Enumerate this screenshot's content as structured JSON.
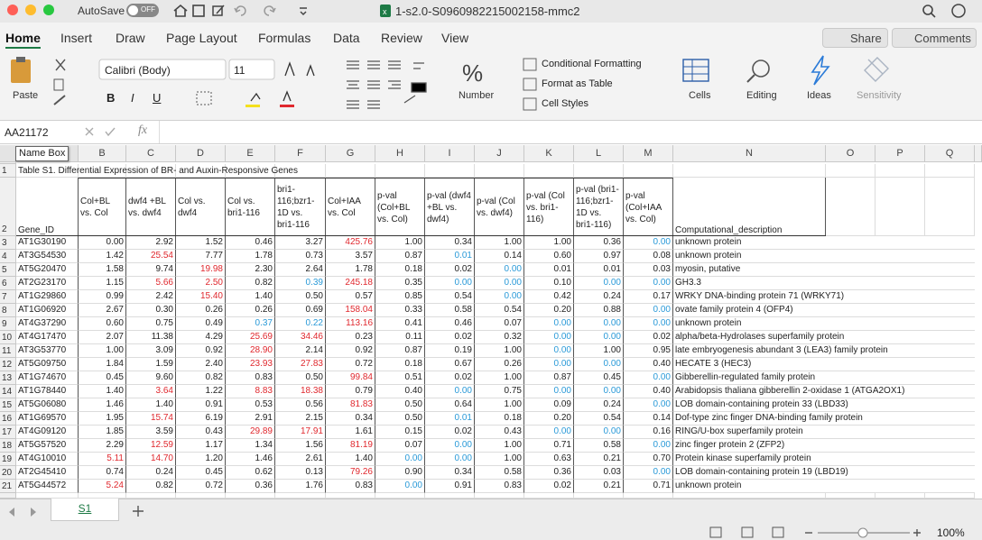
{
  "window": {
    "autosave": "AutoSave",
    "autosave_state": "OFF",
    "file_name": "1-s2.0-S0960982215002158-mmc2"
  },
  "ribbon": {
    "tabs": [
      "Home",
      "Insert",
      "Draw",
      "Page Layout",
      "Formulas",
      "Data",
      "Review",
      "View"
    ],
    "active_tab": 0,
    "share": "Share",
    "comments": "Comments",
    "paste": "Paste",
    "font": "Calibri (Body)",
    "font_size": "11",
    "format_buttons": [
      "B",
      "I",
      "U"
    ],
    "number": "Number",
    "conditional_formatting": "Conditional Formatting",
    "format_as_table": "Format as Table",
    "cell_styles": "Cell Styles",
    "cells": "Cells",
    "editing": "Editing",
    "ideas": "Ideas",
    "sensitivity": "Sensitivity"
  },
  "formula_bar": {
    "cell_ref": "AA21172",
    "fx": "fx"
  },
  "sheet": {
    "name_box_tooltip": "Name Box",
    "columns": [
      "B",
      "C",
      "D",
      "E",
      "F",
      "G",
      "H",
      "I",
      "J",
      "K",
      "L",
      "M",
      "N",
      "O",
      "P",
      "Q"
    ],
    "row_numbers": [
      "1",
      "2",
      "3",
      "4",
      "5",
      "6",
      "7",
      "8",
      "9",
      "10",
      "11",
      "12",
      "13",
      "14",
      "15",
      "16",
      "17",
      "18",
      "19",
      "20",
      "21"
    ],
    "title": "Table S1. Differential Expression of BR- and Auxin-Responsive Genes",
    "headers": [
      "Gene_ID",
      "Col+BL vs. Col",
      "dwf4 +BL vs. dwf4",
      "Col vs. dwf4",
      "Col vs. bri1-116",
      "bri1-116;bzr1-1D vs. bri1-116",
      "Col+IAA vs. Col",
      "p-val (Col+BL vs. Col)",
      "p-val (dwf4 +BL vs. dwf4)",
      "p-val (Col vs. dwf4)",
      "p-val (Col vs. bri1-116)",
      "p-val (bri1-116;bzr1-1D vs. bri1-116)",
      "p-val (Col+IAA vs. Col)",
      "Computational_description"
    ],
    "rows": [
      [
        "AT1G30190",
        "0.00",
        "2.92",
        "1.52",
        "0.46",
        "3.27",
        {
          "text": "425.76",
          "color": "#e0282e"
        },
        "1.00",
        "0.34",
        "1.00",
        "1.00",
        "0.36",
        {
          "text": "0.00",
          "color": "#2a9ad8"
        },
        "unknown protein"
      ],
      [
        "AT3G54530",
        "1.42",
        {
          "text": "25.54",
          "color": "#e0282e"
        },
        "7.77",
        "1.78",
        "0.73",
        "3.57",
        "0.87",
        {
          "text": "0.01",
          "color": "#2a9ad8"
        },
        "0.14",
        "0.60",
        "0.97",
        "0.08",
        "unknown protein"
      ],
      [
        "AT5G20470",
        "1.58",
        "9.74",
        {
          "text": "19.98",
          "color": "#e0282e"
        },
        "2.30",
        "2.64",
        "1.78",
        "0.18",
        "0.02",
        {
          "text": "0.00",
          "color": "#2a9ad8"
        },
        "0.01",
        "0.01",
        "0.03",
        "myosin, putative"
      ],
      [
        "AT2G23170",
        "1.15",
        {
          "text": "5.66",
          "color": "#e0282e"
        },
        {
          "text": "2.50",
          "color": "#e0282e"
        },
        "0.82",
        {
          "text": "0.39",
          "color": "#2a9ad8"
        },
        {
          "text": "245.18",
          "color": "#e0282e"
        },
        "0.35",
        {
          "text": "0.00",
          "color": "#2a9ad8"
        },
        {
          "text": "0.00",
          "color": "#2a9ad8"
        },
        "0.10",
        {
          "text": "0.00",
          "color": "#2a9ad8"
        },
        {
          "text": "0.00",
          "color": "#2a9ad8"
        },
        "GH3.3"
      ],
      [
        "AT1G29860",
        "0.99",
        "2.42",
        {
          "text": "15.40",
          "color": "#e0282e"
        },
        "1.40",
        "0.50",
        "0.57",
        "0.85",
        "0.54",
        {
          "text": "0.00",
          "color": "#2a9ad8"
        },
        "0.42",
        "0.24",
        "0.17",
        "WRKY DNA-binding protein 71 (WRKY71)"
      ],
      [
        "AT1G06920",
        "2.67",
        "0.30",
        "0.26",
        "0.26",
        "0.69",
        {
          "text": "158.04",
          "color": "#e0282e"
        },
        "0.33",
        "0.58",
        "0.54",
        "0.20",
        "0.88",
        {
          "text": "0.00",
          "color": "#2a9ad8"
        },
        "ovate family protein 4 (OFP4)"
      ],
      [
        "AT4G37290",
        "0.60",
        "0.75",
        "0.49",
        {
          "text": "0.37",
          "color": "#2a9ad8"
        },
        {
          "text": "0.22",
          "color": "#2a9ad8"
        },
        {
          "text": "113.16",
          "color": "#e0282e"
        },
        "0.41",
        "0.46",
        "0.07",
        {
          "text": "0.00",
          "color": "#2a9ad8"
        },
        {
          "text": "0.00",
          "color": "#2a9ad8"
        },
        {
          "text": "0.00",
          "color": "#2a9ad8"
        },
        "unknown protein"
      ],
      [
        "AT4G17470",
        "2.07",
        "11.38",
        "4.29",
        {
          "text": "25.69",
          "color": "#e0282e"
        },
        {
          "text": "34.46",
          "color": "#e0282e"
        },
        "0.23",
        "0.11",
        "0.02",
        "0.32",
        {
          "text": "0.00",
          "color": "#2a9ad8"
        },
        {
          "text": "0.00",
          "color": "#2a9ad8"
        },
        "0.02",
        "alpha/beta-Hydrolases superfamily protein"
      ],
      [
        "AT3G53770",
        "1.00",
        "3.09",
        "0.92",
        {
          "text": "28.90",
          "color": "#e0282e"
        },
        "2.14",
        "0.92",
        "0.87",
        "0.19",
        "1.00",
        {
          "text": "0.00",
          "color": "#2a9ad8"
        },
        "1.00",
        "0.95",
        "late embryogenesis abundant 3 (LEA3) family protein"
      ],
      [
        "AT5G09750",
        "1.84",
        "1.59",
        "2.40",
        {
          "text": "23.93",
          "color": "#e0282e"
        },
        {
          "text": "27.83",
          "color": "#e0282e"
        },
        "0.72",
        "0.18",
        "0.67",
        "0.26",
        {
          "text": "0.00",
          "color": "#2a9ad8"
        },
        {
          "text": "0.00",
          "color": "#2a9ad8"
        },
        "0.40",
        "HECATE 3 (HEC3)"
      ],
      [
        "AT1G74670",
        "0.45",
        "9.60",
        "0.82",
        "0.83",
        "0.50",
        {
          "text": "99.84",
          "color": "#e0282e"
        },
        "0.51",
        "0.02",
        "1.00",
        "0.87",
        "0.45",
        {
          "text": "0.00",
          "color": "#2a9ad8"
        },
        "Gibberellin-regulated family protein"
      ],
      [
        "AT1G78440",
        "1.40",
        {
          "text": "3.64",
          "color": "#e0282e"
        },
        "1.22",
        {
          "text": "8.83",
          "color": "#e0282e"
        },
        {
          "text": "18.38",
          "color": "#e0282e"
        },
        "0.79",
        "0.40",
        {
          "text": "0.00",
          "color": "#2a9ad8"
        },
        "0.75",
        {
          "text": "0.00",
          "color": "#2a9ad8"
        },
        {
          "text": "0.00",
          "color": "#2a9ad8"
        },
        "0.40",
        "Arabidopsis thaliana gibberellin 2-oxidase 1 (ATGA2OX1)"
      ],
      [
        "AT5G06080",
        "1.46",
        "1.40",
        "0.91",
        "0.53",
        "0.56",
        {
          "text": "81.83",
          "color": "#e0282e"
        },
        "0.50",
        "0.64",
        "1.00",
        "0.09",
        "0.24",
        {
          "text": "0.00",
          "color": "#2a9ad8"
        },
        "LOB domain-containing protein 33 (LBD33)"
      ],
      [
        "AT1G69570",
        "1.95",
        {
          "text": "15.74",
          "color": "#e0282e"
        },
        "6.19",
        "2.91",
        "2.15",
        "0.34",
        "0.50",
        {
          "text": "0.01",
          "color": "#2a9ad8"
        },
        "0.18",
        "0.20",
        "0.54",
        "0.14",
        "Dof-type zinc finger DNA-binding family protein"
      ],
      [
        "AT4G09120",
        "1.85",
        "3.59",
        "0.43",
        {
          "text": "29.89",
          "color": "#e0282e"
        },
        {
          "text": "17.91",
          "color": "#e0282e"
        },
        "1.61",
        "0.15",
        "0.02",
        "0.43",
        {
          "text": "0.00",
          "color": "#2a9ad8"
        },
        {
          "text": "0.00",
          "color": "#2a9ad8"
        },
        "0.16",
        "RING/U-box superfamily protein"
      ],
      [
        "AT5G57520",
        "2.29",
        {
          "text": "12.59",
          "color": "#e0282e"
        },
        "1.17",
        "1.34",
        "1.56",
        {
          "text": "81.19",
          "color": "#e0282e"
        },
        "0.07",
        {
          "text": "0.00",
          "color": "#2a9ad8"
        },
        "1.00",
        "0.71",
        "0.58",
        {
          "text": "0.00",
          "color": "#2a9ad8"
        },
        "zinc finger protein 2 (ZFP2)"
      ],
      [
        "AT4G10010",
        {
          "text": "5.11",
          "color": "#e0282e"
        },
        {
          "text": "14.70",
          "color": "#e0282e"
        },
        "1.20",
        "1.46",
        "2.61",
        "1.40",
        {
          "text": "0.00",
          "color": "#2a9ad8"
        },
        {
          "text": "0.00",
          "color": "#2a9ad8"
        },
        "1.00",
        "0.63",
        "0.21",
        "0.70",
        "Protein kinase superfamily protein"
      ],
      [
        "AT2G45410",
        "0.74",
        "0.24",
        "0.45",
        "0.62",
        "0.13",
        {
          "text": "79.26",
          "color": "#e0282e"
        },
        "0.90",
        "0.34",
        "0.58",
        "0.36",
        "0.03",
        {
          "text": "0.00",
          "color": "#2a9ad8"
        },
        "LOB domain-containing protein 19 (LBD19)"
      ],
      [
        "AT5G44572",
        {
          "text": "5.24",
          "color": "#e0282e"
        },
        "0.82",
        "0.72",
        "0.36",
        "1.76",
        "0.83",
        {
          "text": "0.00",
          "color": "#2a9ad8"
        },
        "0.91",
        "0.83",
        "0.02",
        "0.21",
        "0.71",
        "unknown protein"
      ]
    ],
    "tab": "S1",
    "zoom": "100%"
  }
}
